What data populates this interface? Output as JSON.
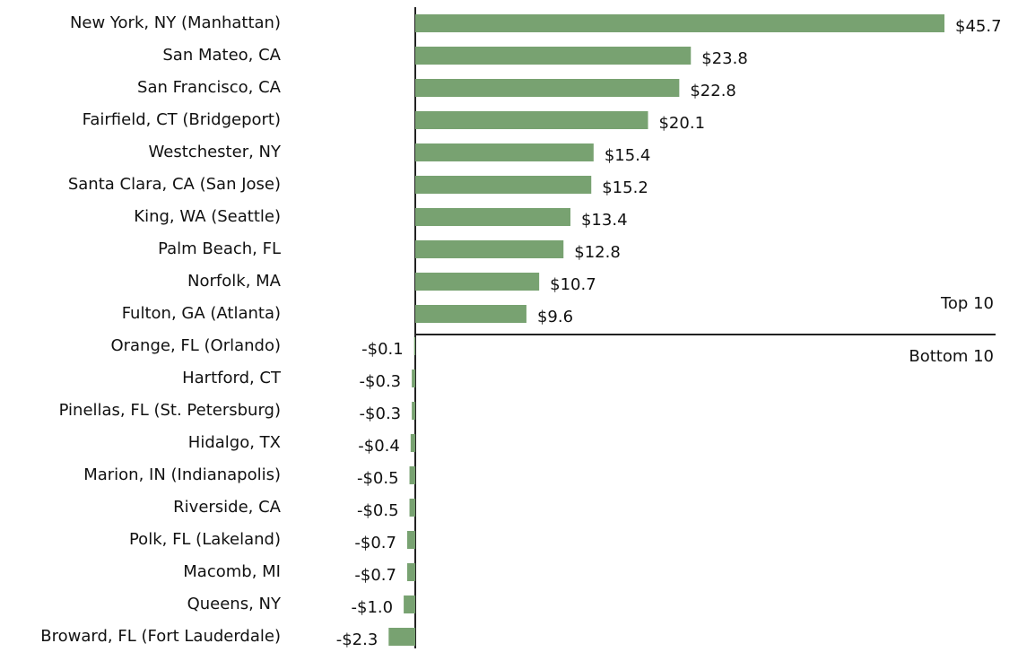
{
  "chart_data": {
    "type": "hbar",
    "categories": [
      "New York, NY (Manhattan)",
      "San Mateo, CA",
      "San Francisco, CA",
      "Fairfield, CT (Bridgeport)",
      "Westchester, NY",
      "Santa Clara, CA (San Jose)",
      "King, WA (Seattle)",
      "Palm Beach, FL",
      "Norfolk, MA",
      "Fulton, GA (Atlanta)",
      "Orange, FL (Orlando)",
      "Hartford, CT",
      "Pinellas, FL (St. Petersburg)",
      "Hidalgo, TX",
      "Marion, IN (Indianapolis)",
      "Riverside, CA",
      "Polk, FL (Lakeland)",
      "Macomb, MI",
      "Queens, NY",
      "Broward, FL (Fort Lauderdale)"
    ],
    "values": [
      45.7,
      23.8,
      22.8,
      20.1,
      15.4,
      15.2,
      13.4,
      12.8,
      10.7,
      9.6,
      -0.1,
      -0.3,
      -0.3,
      -0.4,
      -0.5,
      -0.5,
      -0.7,
      -0.7,
      -1.0,
      -2.3
    ],
    "value_labels": [
      "$45.7",
      "$23.8",
      "$22.8",
      "$20.1",
      "$15.4",
      "$15.2",
      "$13.4",
      "$12.8",
      "$10.7",
      "$9.6",
      "-$0.1",
      "-$0.3",
      "-$0.3",
      "-$0.4",
      "-$0.5",
      "-$0.5",
      "-$0.7",
      "-$0.7",
      "-$1.0",
      "-$2.3"
    ],
    "color": "#78a271",
    "annotations": [
      "Top 10",
      "Bottom 10"
    ]
  }
}
